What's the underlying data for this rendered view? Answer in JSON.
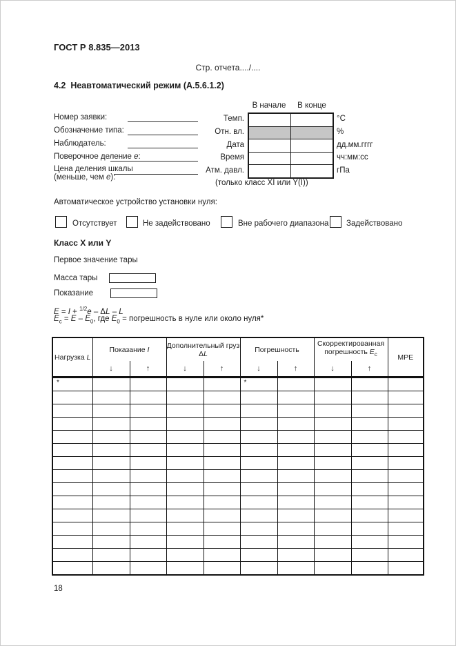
{
  "header": {
    "standard": "ГОСТ Р 8.835—2013",
    "report_page": "Стр. отчета..../....",
    "section": "4.2  Неавтоматический режим (А.5.6.1.2)"
  },
  "form": {
    "field1": "Номер заявки:",
    "field2": "Обозначение типа:",
    "field3": "Наблюдатель:",
    "field4_parts": [
      {
        "t": "Поверочное деление "
      },
      {
        "t": "e",
        "i": 1
      },
      {
        "t": ":"
      }
    ],
    "field5_line1": "Цена деления шкалы",
    "field5_line2_parts": [
      {
        "t": "(меньше, чем "
      },
      {
        "t": "e",
        "i": 1
      },
      {
        "t": "):"
      }
    ]
  },
  "conditions": {
    "header_start": "В начале",
    "header_end": "В конце",
    "row1_label": "Темп.",
    "row1_unit": "°C",
    "row2_label": "Отн. вл.",
    "row2_unit": "%",
    "row3_label": "Дата",
    "row3_unit": "дд.мм.гггг",
    "row4_label": "Время",
    "row4_unit": "чч:мм:сс",
    "row5_label": "Атм. давл.",
    "row5_unit": "гПа",
    "shade_color": "#c6c6c6",
    "note": "(только класс XI или Y(I))"
  },
  "zero_device": {
    "title": "Автоматическое устройство установки нуля:",
    "option1": "Отсутствует",
    "option2": "Не задействовано",
    "option3": "Вне рабочего диапазона",
    "option4": "Задействовано"
  },
  "tare": {
    "class_heading": "Класс X или Y",
    "subheading": "Первое значение тары",
    "field1": "Масса тары",
    "field2": "Показание"
  },
  "formulas": {
    "line1_parts": [
      {
        "t": "E",
        "i": 1
      },
      {
        "t": " = "
      },
      {
        "t": "I",
        "i": 1
      },
      {
        "t": " + "
      },
      {
        "t": "1/2",
        "sup": 1
      },
      {
        "t": "e",
        "i": 1
      },
      {
        "t": " – Δ"
      },
      {
        "t": "L",
        "i": 1
      },
      {
        "t": " – "
      },
      {
        "t": "L",
        "i": 1
      }
    ],
    "line2_parts": [
      {
        "t": "E",
        "i": 1
      },
      {
        "t": "с",
        "sub": 1
      },
      {
        "t": " = "
      },
      {
        "t": "E",
        "i": 1
      },
      {
        "t": " – "
      },
      {
        "t": "E",
        "i": 1
      },
      {
        "t": "0",
        "sub": 1
      },
      {
        "t": ", где "
      },
      {
        "t": "E",
        "i": 1
      },
      {
        "t": "0",
        "sub": 1
      },
      {
        "t": " = погрешность в нуле или около нуля*"
      }
    ]
  },
  "measurement_table": {
    "col_load_parts": [
      {
        "t": "Нагрузка "
      },
      {
        "t": "L",
        "i": 1
      }
    ],
    "col_indication_parts": [
      {
        "t": "Показание "
      },
      {
        "t": "I",
        "i": 1
      }
    ],
    "col_extra_line1": "Дополнительный груз",
    "col_extra_var_parts": [
      {
        "t": "Δ"
      },
      {
        "t": "L",
        "i": 1
      }
    ],
    "col_error": "Погрешность",
    "col_corr_line1": "Скорректированная",
    "col_corr_line2_parts": [
      {
        "t": "погрешность "
      },
      {
        "t": "E",
        "i": 1
      },
      {
        "t": "с",
        "sub": 1
      }
    ],
    "col_mpe": "MPE",
    "arrow_down": "↓",
    "arrow_up": "↑",
    "data_rows": 15,
    "data_cols": 10,
    "row1_mark": "*",
    "row1_mark_cols": [
      0,
      5
    ]
  },
  "footer": {
    "page_number": "18"
  }
}
